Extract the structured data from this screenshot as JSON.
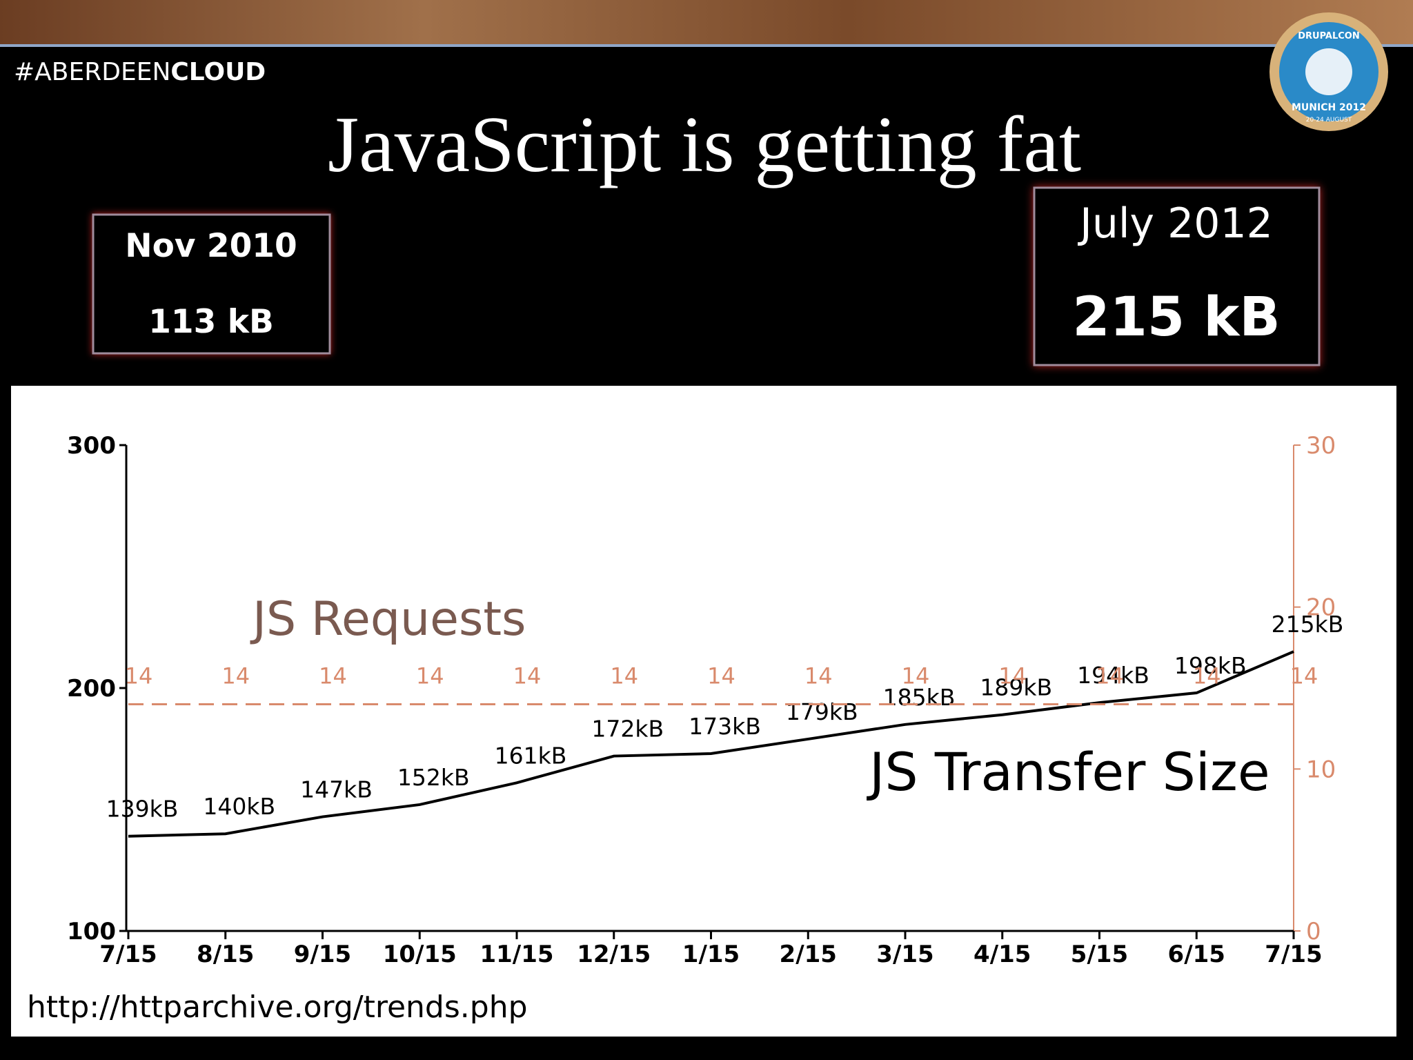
{
  "header": {
    "hashtag": "#ABERDEEN",
    "hashtag_bold": "CLOUD",
    "title": "JavaScript is getting fat"
  },
  "logo": {
    "top": "DRUPALCON",
    "middle": "MUNICH 2012",
    "bottom": "20-24 AUGUST"
  },
  "boxes": [
    {
      "date": "Nov 2010",
      "size": "113 kB"
    },
    {
      "date": "July 2012",
      "size": "215 kB"
    }
  ],
  "source": "http://httparchive.org/trends.php",
  "chart_data": {
    "type": "line",
    "categories": [
      "7/15",
      "8/15",
      "9/15",
      "10/15",
      "11/15",
      "12/15",
      "1/15",
      "2/15",
      "3/15",
      "4/15",
      "5/15",
      "6/15",
      "7/15"
    ],
    "series": [
      {
        "name": "JS Transfer Size",
        "color": "#000000",
        "values": [
          139,
          140,
          147,
          152,
          161,
          172,
          173,
          179,
          185,
          189,
          194,
          198,
          215
        ],
        "value_labels": [
          "139kB",
          "140kB",
          "147kB",
          "152kB",
          "161kB",
          "172kB",
          "173kB",
          "179kB",
          "185kB",
          "189kB",
          "194kB",
          "198kB",
          "215kB"
        ]
      },
      {
        "name": "JS Requests",
        "color": "#d98a6c",
        "axis": "y2",
        "values": [
          14,
          14,
          14,
          14,
          14,
          14,
          14,
          14,
          14,
          14,
          14,
          14,
          14
        ]
      }
    ],
    "ylim": [
      100,
      300
    ],
    "yticks": [
      100,
      200,
      300
    ],
    "y2lim": [
      0,
      30
    ],
    "y2ticks": [
      0,
      10,
      20,
      30
    ]
  }
}
